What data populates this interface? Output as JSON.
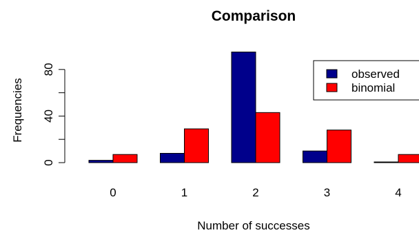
{
  "chart_data": {
    "type": "bar",
    "title": "Comparison",
    "xlabel": "Number of successes",
    "ylabel": "Frequencies",
    "categories": [
      "0",
      "1",
      "2",
      "3",
      "4"
    ],
    "series": [
      {
        "name": "observed",
        "color": "#00008B",
        "values": [
          2,
          8,
          95,
          10,
          0.5
        ]
      },
      {
        "name": "binomial",
        "color": "#FF0000",
        "values": [
          7,
          29,
          43,
          28,
          7
        ]
      }
    ],
    "yticks": [
      0,
      40,
      80
    ],
    "ylim": [
      0,
      95
    ],
    "legend": "top-right",
    "grid": false
  }
}
